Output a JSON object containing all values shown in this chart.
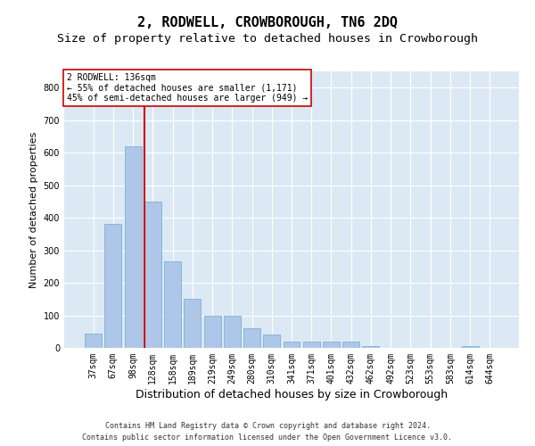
{
  "title": "2, RODWELL, CROWBOROUGH, TN6 2DQ",
  "subtitle": "Size of property relative to detached houses in Crowborough",
  "xlabel": "Distribution of detached houses by size in Crowborough",
  "ylabel": "Number of detached properties",
  "categories": [
    "37sqm",
    "67sqm",
    "98sqm",
    "128sqm",
    "158sqm",
    "189sqm",
    "219sqm",
    "249sqm",
    "280sqm",
    "310sqm",
    "341sqm",
    "371sqm",
    "401sqm",
    "432sqm",
    "462sqm",
    "492sqm",
    "523sqm",
    "553sqm",
    "583sqm",
    "614sqm",
    "644sqm"
  ],
  "values": [
    45,
    380,
    620,
    450,
    265,
    150,
    100,
    100,
    60,
    40,
    20,
    20,
    20,
    20,
    5,
    0,
    0,
    0,
    0,
    5,
    0
  ],
  "bar_color": "#aec6e8",
  "bar_edge_color": "#7ab3d4",
  "ylim": [
    0,
    850
  ],
  "yticks": [
    0,
    100,
    200,
    300,
    400,
    500,
    600,
    700,
    800
  ],
  "vline_x": 2.58,
  "vline_color": "#cc0000",
  "annotation_text": "2 RODWELL: 136sqm\n← 55% of detached houses are smaller (1,171)\n45% of semi-detached houses are larger (949) →",
  "annotation_box_fill": "#ffffff",
  "annotation_box_edge": "#cc0000",
  "footer_text": "Contains HM Land Registry data © Crown copyright and database right 2024.\nContains public sector information licensed under the Open Government Licence v3.0.",
  "title_fontsize": 11,
  "subtitle_fontsize": 9.5,
  "xlabel_fontsize": 9,
  "ylabel_fontsize": 8,
  "tick_fontsize": 7,
  "annot_fontsize": 7,
  "footer_fontsize": 6,
  "plot_bg_color": "#dce9f5",
  "grid_color": "#ffffff",
  "fig_bg_color": "#ffffff"
}
